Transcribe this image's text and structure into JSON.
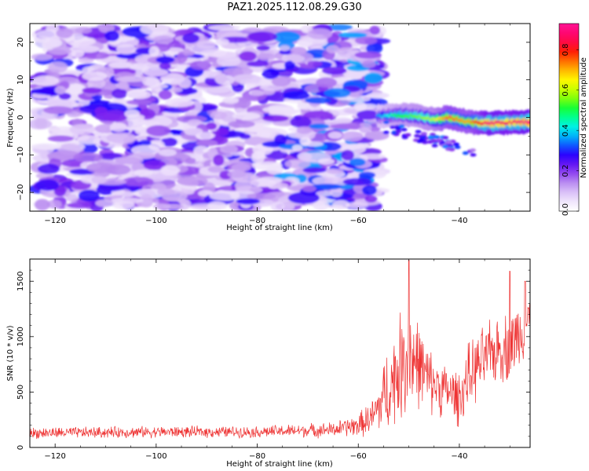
{
  "figure_title": "PAZ1.2025.112.08.29.G30",
  "chart_data": [
    {
      "type": "heatmap",
      "title": "PAZ1.2025.112.08.29.G30",
      "xlabel": "Height of straight line (km)",
      "ylabel": "Frequency (Hz)",
      "xlim": [
        -125,
        -26
      ],
      "ylim": [
        -25,
        25
      ],
      "x_ticks": [
        -120,
        -100,
        -80,
        -60,
        -40
      ],
      "y_ticks": [
        -20,
        -10,
        0,
        10,
        20
      ],
      "colorbar": {
        "label": "Normalized spectral amplitude",
        "range": [
          0,
          0.93
        ],
        "ticks": [
          0.0,
          0.2,
          0.4,
          0.6,
          0.8
        ],
        "colormap": [
          "#ffffff",
          "#e8d8fb",
          "#b88af0",
          "#7a1ef0",
          "#2200ff",
          "#00a0ff",
          "#00ffe0",
          "#00ff40",
          "#9cff00",
          "#ffff00",
          "#ffa000",
          "#ff2000",
          "#ff0060",
          "#ff1493"
        ]
      },
      "ridge_trace": {
        "description_free": true,
        "x": [
          -56,
          -52,
          -48,
          -45,
          -42,
          -38,
          -34,
          -30,
          -27
        ],
        "y": [
          0.3,
          0.6,
          0.3,
          -0.6,
          0.0,
          -1.2,
          -1.6,
          -1.4,
          -1.2
        ],
        "peak_amplitude": [
          0.35,
          0.5,
          0.55,
          0.6,
          0.75,
          0.7,
          0.9,
          0.85,
          0.9
        ]
      },
      "noise_region": {
        "x": [
          -123,
          -56
        ],
        "y": [
          -25,
          25
        ],
        "amplitude": [
          0.05,
          0.3
        ]
      }
    },
    {
      "type": "line",
      "xlabel": "Height of straight line (km)",
      "ylabel": "SNR (10 * v/v)",
      "xlim": [
        -125,
        -26
      ],
      "ylim": [
        0,
        1700
      ],
      "x_ticks": [
        -120,
        -100,
        -80,
        -60,
        -40
      ],
      "y_ticks": [
        0,
        500,
        1000,
        1500
      ],
      "color": "#ee3333",
      "envelope_x": [
        -125,
        -100,
        -80,
        -65,
        -60,
        -57,
        -55,
        -52,
        -50,
        -48,
        -46,
        -44,
        -42,
        -40,
        -38,
        -35,
        -32,
        -30,
        -28,
        -26
      ],
      "envelope_mean": [
        130,
        140,
        140,
        160,
        200,
        280,
        450,
        700,
        850,
        750,
        600,
        550,
        500,
        450,
        650,
        800,
        900,
        900,
        1050,
        1150
      ],
      "envelope_amplitude": [
        60,
        60,
        60,
        80,
        120,
        200,
        400,
        550,
        650,
        450,
        350,
        300,
        280,
        300,
        350,
        350,
        350,
        380,
        350,
        300
      ],
      "peaks": [
        {
          "x": -50,
          "y": 1690
        },
        {
          "x": -30,
          "y": 1590
        },
        {
          "x": -27,
          "y": 1500
        }
      ]
    }
  ]
}
